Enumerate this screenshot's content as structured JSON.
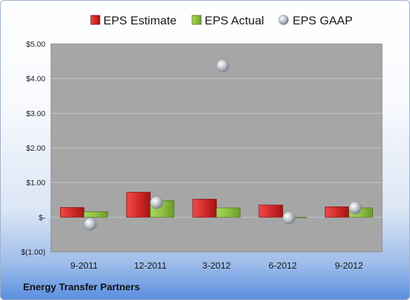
{
  "company": "Energy Transfer Partners",
  "colors": {
    "estimate": "#d42a2a",
    "actual": "#8fc043",
    "gaap": "#b8bcc2",
    "plot_bg": "#a6a6a6"
  },
  "chart_data": {
    "type": "bar",
    "categories": [
      "9-2011",
      "12-2011",
      "3-2012",
      "6-2012",
      "9-2012"
    ],
    "series": [
      {
        "name": "EPS Estimate",
        "type": "bar",
        "values": [
          0.28,
          0.72,
          0.52,
          0.35,
          0.3
        ]
      },
      {
        "name": "EPS Actual",
        "type": "bar",
        "values": [
          0.16,
          0.48,
          0.27,
          0.0,
          0.27
        ]
      },
      {
        "name": "EPS GAAP",
        "type": "scatter",
        "values": [
          -0.2,
          0.42,
          4.37,
          -0.02,
          0.27
        ]
      }
    ],
    "ylim": [
      -1,
      5
    ],
    "yticks": [
      5,
      4,
      3,
      2,
      1,
      0,
      -1
    ],
    "ytick_labels": [
      "$5.00",
      "$4.00",
      "$3.00",
      "$2.00",
      "$1.00",
      "$-",
      "$(1.00)"
    ],
    "grid": true,
    "legend": "top"
  }
}
